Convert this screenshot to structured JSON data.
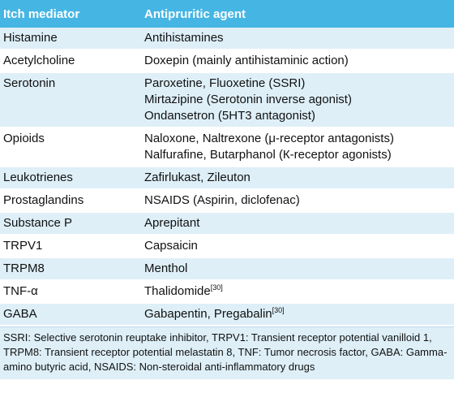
{
  "header": {
    "col1": "Itch mediator",
    "col2": "Antipruritic agent"
  },
  "rows": [
    {
      "mediator": "Histamine",
      "agents": [
        "Antihistamines"
      ]
    },
    {
      "mediator": "Acetylcholine",
      "agents": [
        "Doxepin (mainly antihistaminic action)"
      ]
    },
    {
      "mediator": "Serotonin",
      "agents": [
        "Paroxetine, Fluoxetine (SSRI)",
        "Mirtazipine (Serotonin inverse agonist)",
        "Ondansetron (5HT3 antagonist)"
      ]
    },
    {
      "mediator": "Opioids",
      "agents": [
        "Naloxone, Naltrexone (μ-receptor antagonists)",
        "Nalfurafine, Butarphanol (К-receptor agonists)"
      ]
    },
    {
      "mediator": "Leukotrienes",
      "agents": [
        "Zafirlukast, Zileuton"
      ]
    },
    {
      "mediator": "Prostaglandins",
      "agents": [
        "NSAIDS (Aspirin, diclofenac)"
      ]
    },
    {
      "mediator": "Substance P",
      "agents": [
        "Aprepitant"
      ]
    },
    {
      "mediator": "TRPV1",
      "agents": [
        "Capsaicin"
      ]
    },
    {
      "mediator": "TRPM8",
      "agents": [
        "Menthol"
      ]
    },
    {
      "mediator": "TNF-α",
      "agents": [
        "Thalidomide"
      ],
      "ref": "[30]"
    },
    {
      "mediator": "GABA",
      "agents": [
        "Gabapentin, Pregabalin"
      ],
      "ref": "[30]"
    }
  ],
  "footnote": "SSRI: Selective serotonin reuptake inhibitor, TRPV1: Transient receptor potential vanilloid 1, TRPM8: Transient receptor potential melastatin 8, TNF: Tumor necrosis factor, GABA: Gamma-amino butyric acid, NSAIDS: Non-steroidal anti-inflammatory drugs"
}
